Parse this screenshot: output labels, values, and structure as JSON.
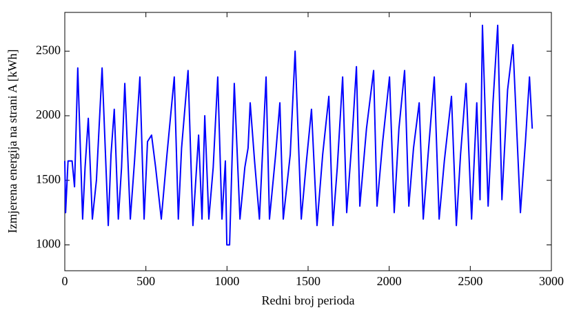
{
  "chart_data": {
    "type": "line",
    "xlabel": "Redni broj perioda",
    "ylabel": "Izmjerena energija na strani A [kWh]",
    "color": "#0000ff",
    "xlim": [
      0,
      3000
    ],
    "xticks": [
      0,
      500,
      1000,
      1500,
      2000,
      2500,
      3000
    ],
    "ylim": [
      800,
      2800
    ],
    "yticks": [
      1000,
      1500,
      2000,
      2500
    ],
    "grid": false,
    "x": [
      0,
      5,
      20,
      45,
      60,
      80,
      110,
      125,
      145,
      170,
      195,
      230,
      268,
      285,
      305,
      330,
      350,
      370,
      404,
      430,
      463,
      489,
      510,
      535,
      560,
      595,
      630,
      675,
      700,
      720,
      760,
      790,
      825,
      846,
      863,
      888,
      915,
      943,
      969,
      990,
      999,
      1016,
      1045,
      1080,
      1110,
      1130,
      1143,
      1170,
      1200,
      1241,
      1262,
      1300,
      1326,
      1347,
      1390,
      1420,
      1458,
      1490,
      1521,
      1555,
      1590,
      1628,
      1653,
      1680,
      1713,
      1738,
      1770,
      1798,
      1819,
      1860,
      1904,
      1925,
      1960,
      2002,
      2031,
      2060,
      2095,
      2121,
      2150,
      2185,
      2210,
      2240,
      2278,
      2308,
      2340,
      2384,
      2414,
      2440,
      2474,
      2508,
      2540,
      2560,
      2575,
      2610,
      2640,
      2669,
      2695,
      2730,
      2763,
      2809,
      2840,
      2865,
      2882
    ],
    "values": [
      1650,
      1250,
      1650,
      1650,
      1450,
      2370,
      1200,
      1600,
      1980,
      1200,
      1500,
      2370,
      1150,
      1700,
      2050,
      1200,
      1600,
      2250,
      1200,
      1650,
      2300,
      1200,
      1800,
      1850,
      1600,
      1200,
      1700,
      2300,
      1200,
      1750,
      2350,
      1150,
      1850,
      1200,
      2000,
      1200,
      1600,
      2300,
      1200,
      1650,
      1000,
      1000,
      2250,
      1200,
      1600,
      1750,
      2100,
      1650,
      1200,
      2300,
      1200,
      1700,
      2100,
      1200,
      1700,
      2500,
      1200,
      1650,
      2050,
      1150,
      1700,
      2150,
      1150,
      1600,
      2300,
      1250,
      1800,
      2380,
      1300,
      1900,
      2350,
      1300,
      1800,
      2300,
      1250,
      1900,
      2350,
      1300,
      1750,
      2100,
      1200,
      1700,
      2300,
      1200,
      1650,
      2150,
      1150,
      1700,
      2250,
      1200,
      2100,
      1350,
      2700,
      1300,
      2100,
      2700,
      1350,
      2200,
      2550,
      1250,
      1800,
      2300,
      1900
    ]
  }
}
